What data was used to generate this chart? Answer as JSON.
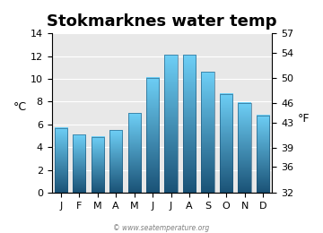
{
  "title": "Stokmarknes water temp",
  "months": [
    "J",
    "F",
    "M",
    "A",
    "M",
    "J",
    "J",
    "A",
    "S",
    "O",
    "N",
    "D"
  ],
  "values_c": [
    5.7,
    5.1,
    4.9,
    5.5,
    7.0,
    10.1,
    12.1,
    12.1,
    10.6,
    8.7,
    7.9,
    6.8
  ],
  "ylim_c": [
    0,
    14
  ],
  "yticks_c": [
    0,
    2,
    4,
    6,
    8,
    10,
    12,
    14
  ],
  "ylim_f": [
    32,
    57
  ],
  "yticks_f": [
    32,
    36,
    39,
    43,
    46,
    50,
    54,
    57
  ],
  "bar_color_top": "#6ecff6",
  "bar_color_bottom": "#1a5276",
  "background_color": "#e8e8e8",
  "title_fontsize": 13,
  "tick_fontsize": 8,
  "label_fontsize": 9,
  "watermark": "© www.seatemperature.org"
}
